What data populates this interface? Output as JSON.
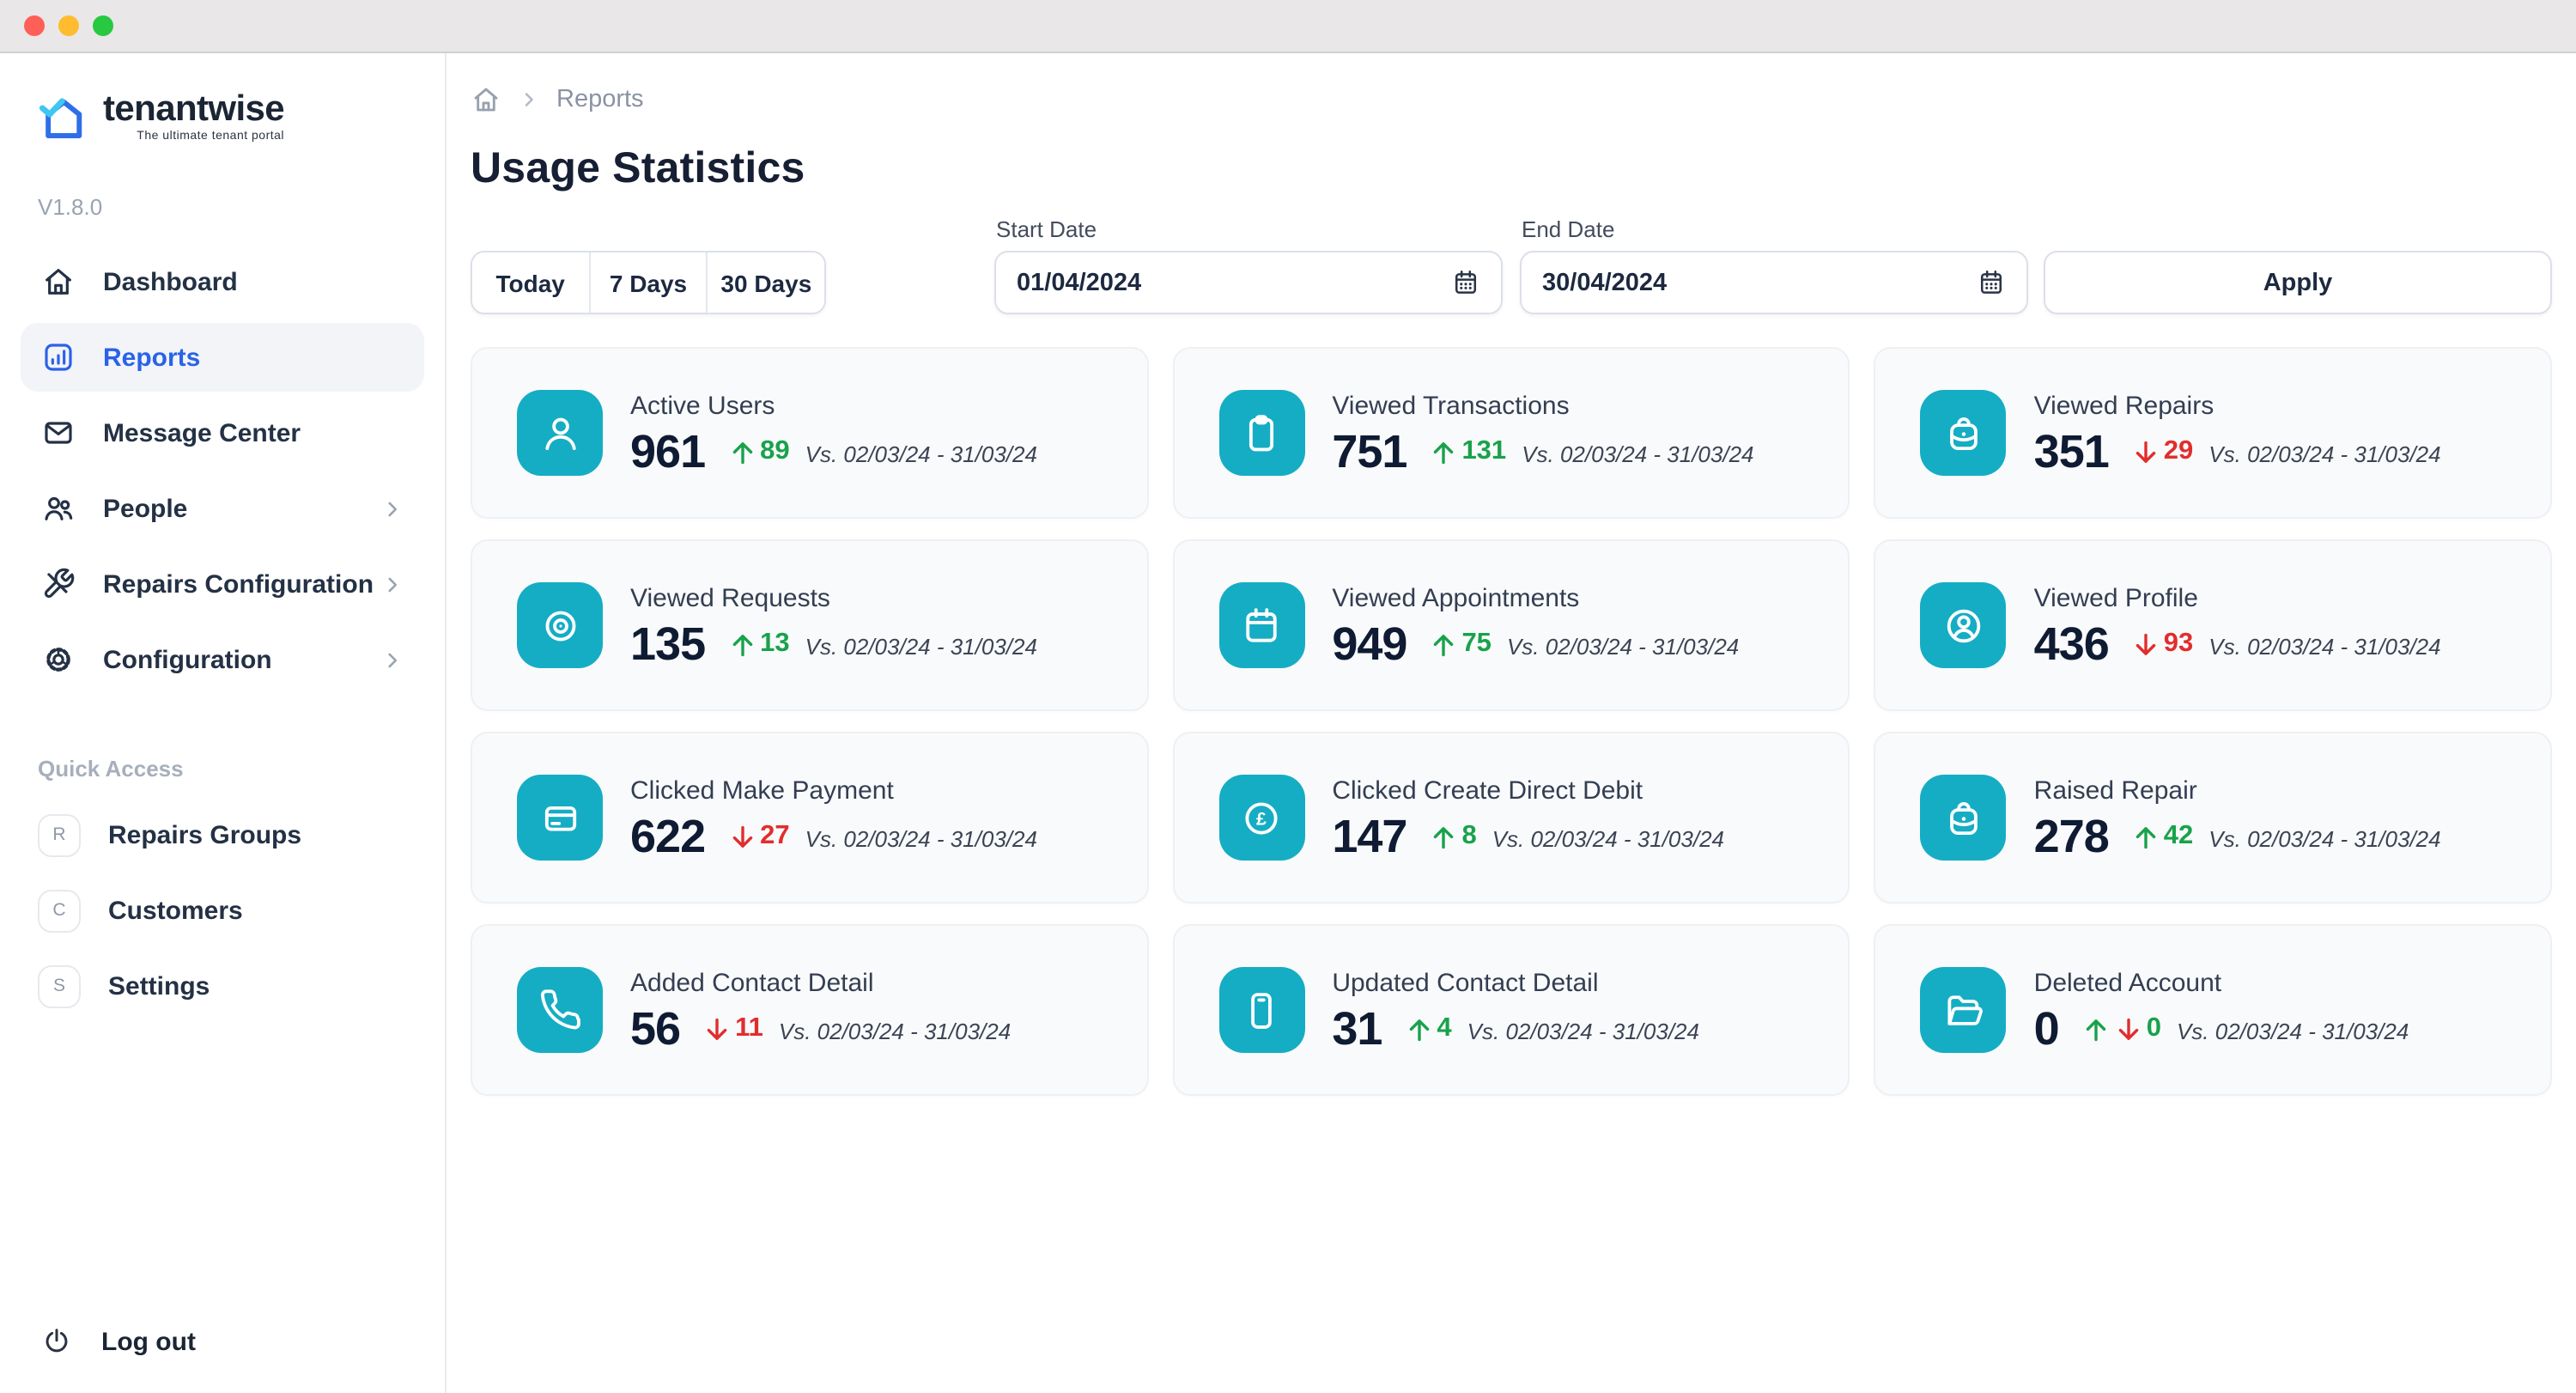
{
  "window": {
    "traffic_lights": [
      {
        "name": "close",
        "color": "#ff5f57"
      },
      {
        "name": "minimize",
        "color": "#febc2e"
      },
      {
        "name": "zoom",
        "color": "#28c840"
      }
    ]
  },
  "sidebar": {
    "logo": {
      "brand": "tenantwise",
      "tagline": "The ultimate tenant portal"
    },
    "version": "V1.8.0",
    "nav": [
      {
        "label": "Dashboard",
        "icon": "home-icon",
        "active": false,
        "chevron": false
      },
      {
        "label": "Reports",
        "icon": "bar-chart-icon",
        "active": true,
        "chevron": false
      },
      {
        "label": "Message Center",
        "icon": "envelope-icon",
        "active": false,
        "chevron": false
      },
      {
        "label": "People",
        "icon": "people-icon",
        "active": false,
        "chevron": true
      },
      {
        "label": "Repairs Configuration",
        "icon": "tools-icon",
        "active": false,
        "chevron": true
      },
      {
        "label": "Configuration",
        "icon": "gear-icon",
        "active": false,
        "chevron": true
      }
    ],
    "quick_access": {
      "heading": "Quick Access",
      "items": [
        {
          "badge": "R",
          "label": "Repairs Groups"
        },
        {
          "badge": "C",
          "label": "Customers"
        },
        {
          "badge": "S",
          "label": "Settings"
        }
      ]
    },
    "logout_label": "Log out"
  },
  "breadcrumb": {
    "page": "Reports"
  },
  "page_title": "Usage Statistics",
  "filters": {
    "quick_ranges": [
      "Today",
      "7 Days",
      "30 Days"
    ],
    "start_date": {
      "label": "Start Date",
      "value": "01/04/2024"
    },
    "end_date": {
      "label": "End Date",
      "value": "30/04/2024"
    },
    "apply_label": "Apply"
  },
  "comparison_period": "Vs. 02/03/24 - 31/03/24",
  "cards": [
    {
      "title": "Active Users",
      "value": "961",
      "delta": "89",
      "direction": "up",
      "icon": "user-icon"
    },
    {
      "title": "Viewed Transactions",
      "value": "751",
      "delta": "131",
      "direction": "up",
      "icon": "clipboard-icon"
    },
    {
      "title": "Viewed Repairs",
      "value": "351",
      "delta": "29",
      "direction": "down",
      "icon": "briefcase-icon"
    },
    {
      "title": "Viewed Requests",
      "value": "135",
      "delta": "13",
      "direction": "up",
      "icon": "eye-icon"
    },
    {
      "title": "Viewed Appointments",
      "value": "949",
      "delta": "75",
      "direction": "up",
      "icon": "calendar-icon"
    },
    {
      "title": "Viewed Profile",
      "value": "436",
      "delta": "93",
      "direction": "down",
      "icon": "user-circle-icon"
    },
    {
      "title": "Clicked Make Payment",
      "value": "622",
      "delta": "27",
      "direction": "down",
      "icon": "credit-card-icon"
    },
    {
      "title": "Clicked Create Direct Debit",
      "value": "147",
      "delta": "8",
      "direction": "up",
      "icon": "pound-circle-icon"
    },
    {
      "title": "Raised Repair",
      "value": "278",
      "delta": "42",
      "direction": "up",
      "icon": "briefcase-icon"
    },
    {
      "title": "Added Contact Detail",
      "value": "56",
      "delta": "11",
      "direction": "down",
      "icon": "phone-icon"
    },
    {
      "title": "Updated Contact Detail",
      "value": "31",
      "delta": "4",
      "direction": "up",
      "icon": "smartphone-icon"
    },
    {
      "title": "Deleted Account",
      "value": "0",
      "delta": "0",
      "direction": "both",
      "icon": "folder-icon"
    }
  ],
  "colors": {
    "accent_teal": "#15adc4",
    "positive_green": "#18a24b",
    "negative_red": "#e22d2d",
    "active_blue": "#2a62e8",
    "brand_blue": "#2e6fe8",
    "brand_cyan": "#41c6f3"
  }
}
